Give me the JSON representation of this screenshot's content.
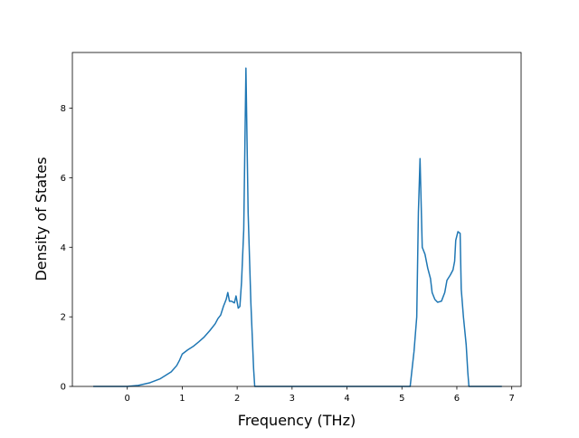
{
  "chart_data": {
    "type": "line",
    "xlabel": "Frequency (THz)",
    "ylabel": "Density of States",
    "x": [
      -0.62,
      0,
      0.2,
      0.4,
      0.6,
      0.8,
      0.9,
      0.95,
      1.0,
      1.1,
      1.2,
      1.3,
      1.4,
      1.5,
      1.6,
      1.65,
      1.7,
      1.75,
      1.8,
      1.83,
      1.86,
      1.9,
      1.95,
      1.98,
      2.02,
      2.05,
      2.08,
      2.12,
      2.16,
      2.2,
      2.25,
      2.3,
      2.32,
      5.15,
      5.22,
      5.27,
      5.3,
      5.33,
      5.37,
      5.42,
      5.47,
      5.52,
      5.55,
      5.6,
      5.65,
      5.72,
      5.78,
      5.82,
      5.88,
      5.93,
      5.96,
      5.98,
      6.02,
      6.06,
      6.08,
      6.12,
      6.17,
      6.2,
      6.22,
      6.82
    ],
    "series": [
      {
        "color": "#1f77b4",
        "values": [
          0,
          0,
          0.03,
          0.1,
          0.22,
          0.42,
          0.6,
          0.75,
          0.93,
          1.05,
          1.15,
          1.28,
          1.42,
          1.6,
          1.8,
          1.95,
          2.05,
          2.3,
          2.5,
          2.7,
          2.45,
          2.45,
          2.4,
          2.6,
          2.25,
          2.3,
          3.0,
          4.5,
          9.15,
          5.0,
          2.4,
          0.5,
          0,
          0,
          1.0,
          2.0,
          5.0,
          6.55,
          4.0,
          3.8,
          3.4,
          3.1,
          2.7,
          2.5,
          2.42,
          2.45,
          2.7,
          3.05,
          3.2,
          3.35,
          3.6,
          4.2,
          4.45,
          4.4,
          2.8,
          2.0,
          1.2,
          0.4,
          0,
          0
        ]
      }
    ],
    "xlim": [
      -1.0,
      7.17
    ],
    "ylim": [
      0,
      9.6
    ],
    "xticks": [
      0,
      1,
      2,
      3,
      4,
      5,
      6,
      7
    ],
    "yticks": [
      0,
      2,
      4,
      6,
      8
    ]
  }
}
